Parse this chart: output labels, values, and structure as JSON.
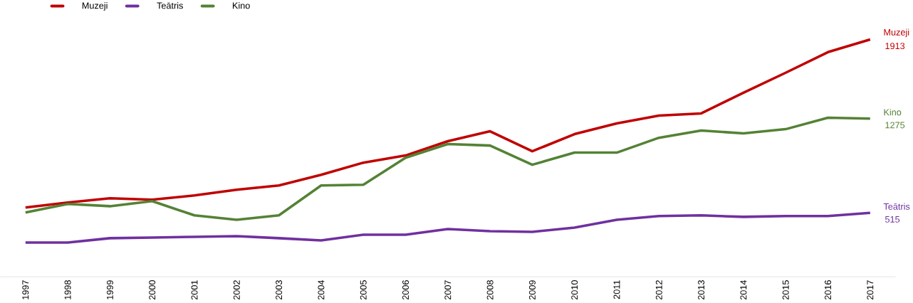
{
  "chart_data": {
    "type": "line",
    "categories": [
      "1997",
      "1998",
      "1999",
      "2000",
      "2001",
      "2002",
      "2003",
      "2004",
      "2005",
      "2006",
      "2007",
      "2008",
      "2009",
      "2010",
      "2011",
      "2012",
      "2013",
      "2014",
      "2015",
      "2016",
      "2017"
    ],
    "series": [
      {
        "name": "Muzeji",
        "color": "#c00000",
        "values": [
          558,
          598,
          633,
          621,
          656,
          702,
          736,
          822,
          920,
          978,
          1093,
          1173,
          1012,
          1150,
          1236,
          1300,
          1317,
          1484,
          1645,
          1811,
          1913
        ],
        "value_labels": [
          null,
          null,
          null,
          null,
          null,
          null,
          null,
          null,
          null,
          null,
          null,
          null,
          null,
          null,
          null,
          null,
          null,
          null,
          null,
          null,
          "1913"
        ]
      },
      {
        "name": "Teātris",
        "color": "#7030a0",
        "values": [
          276,
          276,
          311,
          316,
          322,
          328,
          311,
          293,
          339,
          339,
          385,
          368,
          362,
          397,
          460,
          489,
          495,
          483,
          489,
          489,
          515
        ],
        "value_labels": [
          null,
          null,
          null,
          null,
          null,
          null,
          null,
          null,
          null,
          null,
          null,
          null,
          null,
          null,
          null,
          null,
          null,
          null,
          null,
          null,
          "515"
        ]
      },
      {
        "name": "Kino",
        "color": "#548235",
        "values": [
          518,
          587,
          569,
          610,
          495,
          460,
          495,
          736,
          742,
          960,
          1070,
          1058,
          903,
          1001,
          1001,
          1121,
          1179,
          1156,
          1190,
          1282,
          1275
        ],
        "value_labels": [
          null,
          null,
          null,
          null,
          null,
          null,
          null,
          null,
          null,
          null,
          null,
          null,
          null,
          null,
          null,
          null,
          null,
          null,
          null,
          null,
          "1275"
        ]
      }
    ],
    "legend": "top left",
    "marker": "none",
    "line_style": "solid"
  }
}
